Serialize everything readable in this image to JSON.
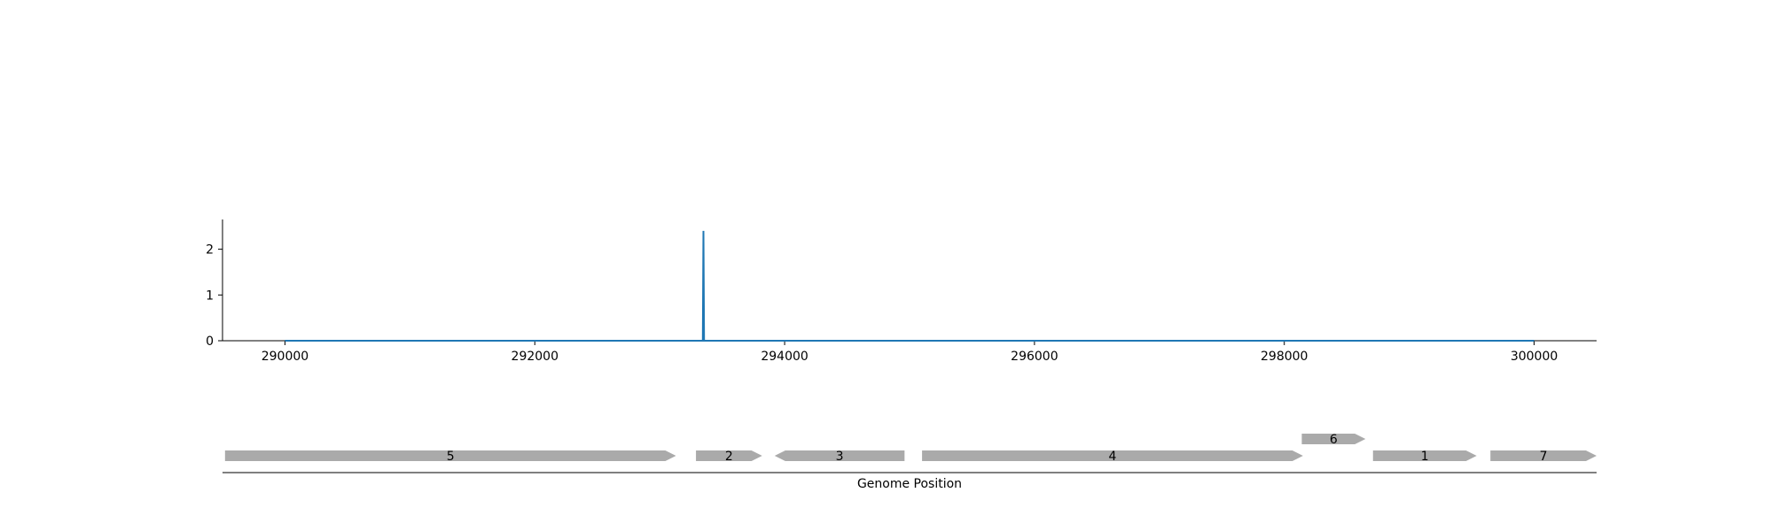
{
  "chart_data": [
    {
      "type": "line",
      "x": [
        290000,
        293345,
        293350,
        293355,
        300000
      ],
      "series": [
        {
          "values": [
            0,
            0,
            2.4,
            0,
            0
          ],
          "color": "#1f77b4"
        }
      ],
      "xlim": [
        289500,
        300500
      ],
      "ylim": [
        0,
        2.65
      ],
      "xticks": [
        290000,
        292000,
        294000,
        296000,
        298000,
        300000
      ],
      "xtick_labels": [
        "290000",
        "292000",
        "294000",
        "296000",
        "298000",
        "300000"
      ],
      "yticks": [
        0,
        1,
        2
      ],
      "ytick_labels": [
        "0",
        "1",
        "2"
      ],
      "grid": false,
      "legend": "none"
    },
    {
      "type": "gene-track",
      "xlabel": "Genome Position",
      "xlim": [
        289500,
        300500
      ],
      "genes": [
        {
          "label": "5",
          "start": 289520,
          "end": 293130,
          "strand": "+",
          "row": 0
        },
        {
          "label": "2",
          "start": 293290,
          "end": 293820,
          "strand": "+",
          "row": 0
        },
        {
          "label": "3",
          "start": 293920,
          "end": 294960,
          "strand": "-",
          "row": 0
        },
        {
          "label": "4",
          "start": 295100,
          "end": 298150,
          "strand": "+",
          "row": 0
        },
        {
          "label": "6",
          "start": 298140,
          "end": 298650,
          "strand": "+",
          "row": 1
        },
        {
          "label": "1",
          "start": 298710,
          "end": 299540,
          "strand": "+",
          "row": 0
        },
        {
          "label": "7",
          "start": 299650,
          "end": 300500,
          "strand": "+",
          "row": 0
        }
      ],
      "gene_color": "#aaaaaa"
    }
  ]
}
